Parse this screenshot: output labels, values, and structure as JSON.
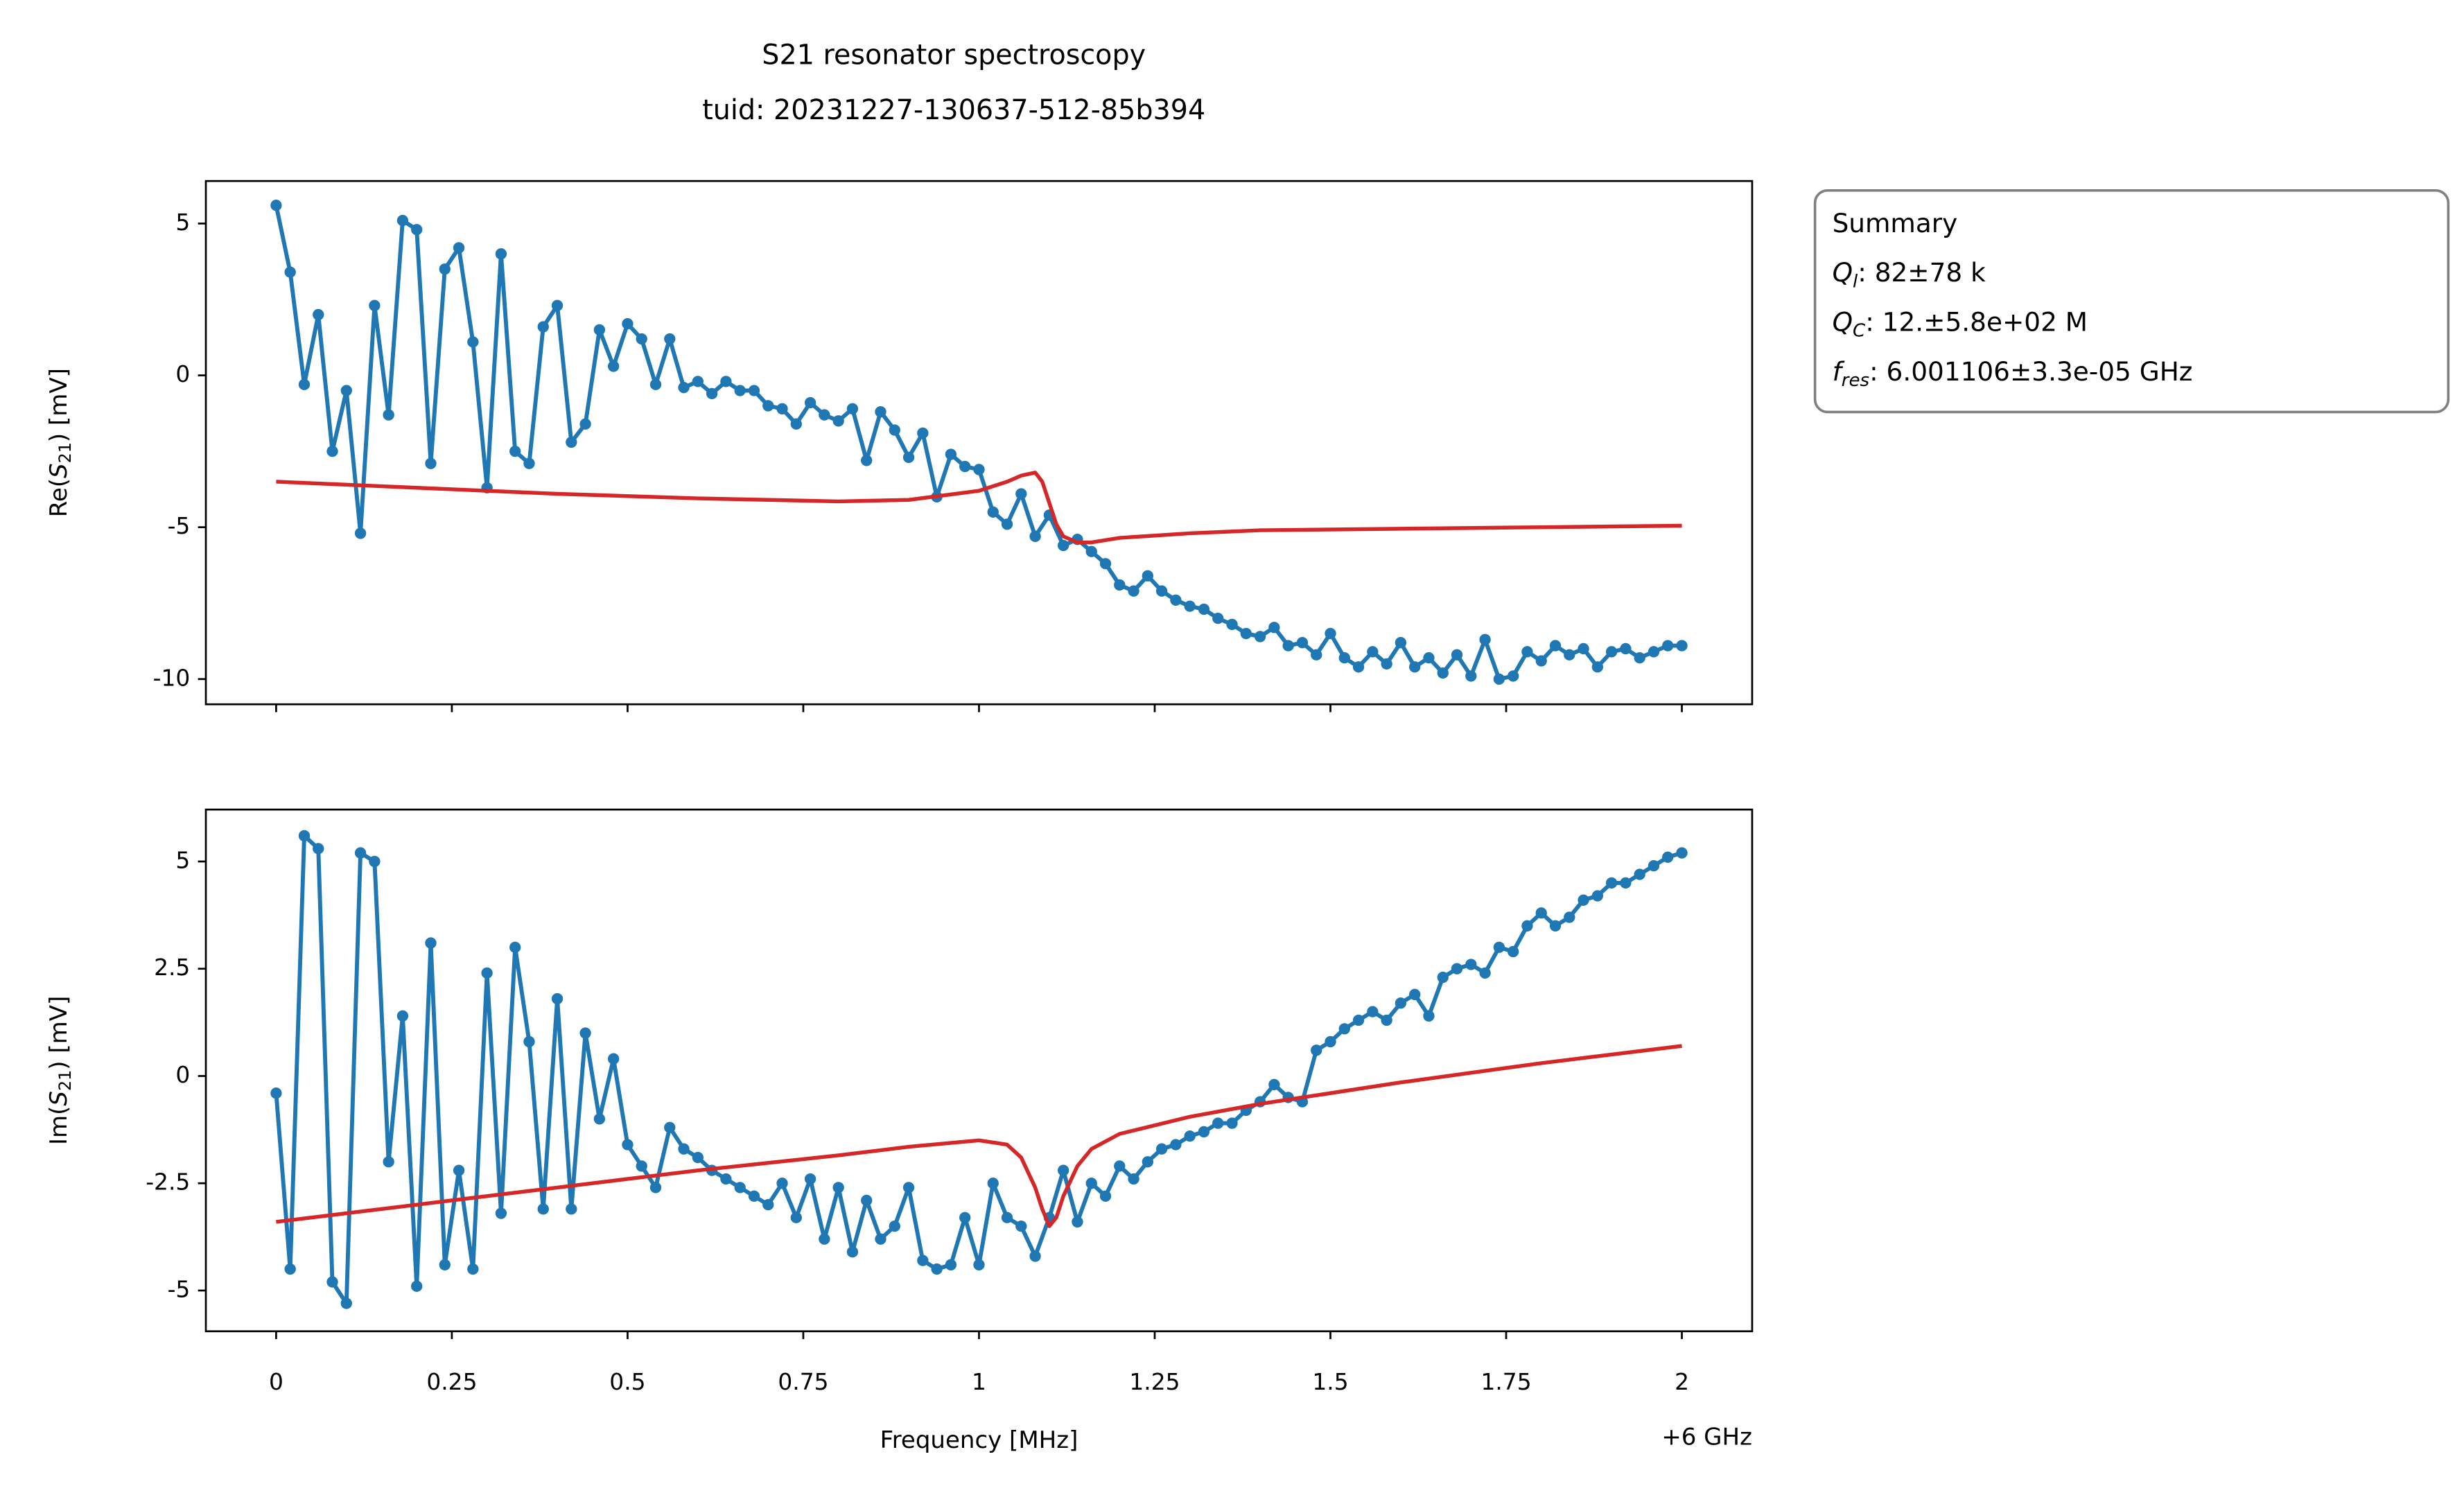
{
  "chart_data": [
    {
      "type": "line",
      "title": "S21 resonator spectroscopy",
      "subtitle": "tuid: 20231227-130637-512-85b394",
      "ylabel": {
        "prefix": "Re(",
        "symbol": "S",
        "subscript": "21",
        "suffix": ") [mV]"
      },
      "xlim": [
        -0.1,
        2.1
      ],
      "ylim": [
        -10.83,
        6.4
      ],
      "xticks": [
        0,
        0.25,
        0.5,
        0.75,
        1,
        1.25,
        1.5,
        1.75,
        2
      ],
      "show_xtick_labels": false,
      "yticks": [
        -10,
        -5,
        0,
        5
      ],
      "series": [
        {
          "color": "#1f77b4",
          "markers": true,
          "x": [
            0,
            0.02,
            0.04,
            0.06,
            0.08,
            0.1,
            0.12,
            0.14,
            0.16,
            0.18,
            0.2,
            0.22,
            0.24,
            0.26,
            0.28,
            0.3,
            0.32,
            0.34,
            0.36,
            0.38,
            0.4,
            0.42,
            0.44,
            0.46,
            0.48,
            0.5,
            0.52,
            0.54,
            0.56,
            0.58,
            0.6,
            0.62,
            0.64,
            0.66,
            0.68,
            0.7,
            0.72,
            0.74,
            0.76,
            0.78,
            0.8,
            0.82,
            0.84,
            0.86,
            0.88,
            0.9,
            0.92,
            0.94,
            0.96,
            0.98,
            1,
            1.02,
            1.04,
            1.06,
            1.08,
            1.1,
            1.12,
            1.14,
            1.16,
            1.18,
            1.2,
            1.22,
            1.24,
            1.26,
            1.28,
            1.3,
            1.32,
            1.34,
            1.36,
            1.38,
            1.4,
            1.42,
            1.44,
            1.46,
            1.48,
            1.5,
            1.52,
            1.54,
            1.56,
            1.58,
            1.6,
            1.62,
            1.64,
            1.66,
            1.68,
            1.7,
            1.72,
            1.74,
            1.76,
            1.78,
            1.8,
            1.82,
            1.84,
            1.86,
            1.88,
            1.9,
            1.92,
            1.94,
            1.96,
            1.98,
            2
          ],
          "values": [
            5.6,
            3.4,
            -0.3,
            2.0,
            -2.5,
            -0.5,
            -5.2,
            2.3,
            -1.3,
            5.1,
            4.8,
            -2.9,
            3.5,
            4.2,
            1.1,
            -3.7,
            4.0,
            -2.5,
            -2.9,
            1.6,
            2.3,
            -2.2,
            -1.6,
            1.5,
            0.3,
            1.7,
            1.2,
            -0.3,
            1.2,
            -0.4,
            -0.2,
            -0.6,
            -0.2,
            -0.5,
            -0.5,
            -1.0,
            -1.1,
            -1.6,
            -0.9,
            -1.3,
            -1.5,
            -1.1,
            -2.8,
            -1.2,
            -1.8,
            -2.7,
            -1.9,
            -4.0,
            -2.6,
            -3.0,
            -3.1,
            -4.5,
            -4.9,
            -3.9,
            -5.3,
            -4.6,
            -5.6,
            -5.4,
            -5.8,
            -6.2,
            -6.9,
            -7.1,
            -6.6,
            -7.1,
            -7.4,
            -7.6,
            -7.7,
            -8.0,
            -8.2,
            -8.5,
            -8.6,
            -8.3,
            -8.9,
            -8.8,
            -9.2,
            -8.5,
            -9.3,
            -9.6,
            -9.1,
            -9.5,
            -8.8,
            -9.6,
            -9.3,
            -9.8,
            -9.2,
            -9.9,
            -8.7,
            -10.0,
            -9.9,
            -9.1,
            -9.4,
            -8.9,
            -9.2,
            -9.0,
            -9.6,
            -9.1,
            -9.0,
            -9.3,
            -9.1,
            -8.9,
            -8.9
          ]
        },
        {
          "color": "#d62728",
          "markers": false,
          "x": [
            0,
            0.2,
            0.4,
            0.6,
            0.8,
            0.9,
            1.0,
            1.04,
            1.06,
            1.08,
            1.09,
            1.1,
            1.11,
            1.12,
            1.14,
            1.16,
            1.2,
            1.3,
            1.4,
            1.6,
            1.8,
            2.0
          ],
          "values": [
            -3.5,
            -3.7,
            -3.9,
            -4.05,
            -4.15,
            -4.1,
            -3.8,
            -3.5,
            -3.3,
            -3.2,
            -3.5,
            -4.2,
            -4.9,
            -5.3,
            -5.5,
            -5.5,
            -5.35,
            -5.2,
            -5.1,
            -5.05,
            -5.0,
            -4.95
          ]
        }
      ],
      "annotation": {
        "title": "Summary",
        "lines": [
          {
            "symbol": "Q",
            "subscript": "l",
            "text": ": 82±78 k"
          },
          {
            "symbol": "Q",
            "subscript": "C",
            "text": ": 12.±5.8e+02 M"
          },
          {
            "symbol": "f",
            "subscript": "res",
            "text": ": 6.001106±3.3e-05 GHz"
          }
        ]
      }
    },
    {
      "type": "line",
      "ylabel": {
        "prefix": "Im(",
        "symbol": "S",
        "subscript": "21",
        "suffix": ") [mV]"
      },
      "xlabel": "Frequency [MHz]",
      "x_offset_label": "+6 GHz",
      "xlim": [
        -0.1,
        2.1
      ],
      "ylim": [
        -5.95,
        6.21
      ],
      "xticks": [
        0,
        0.25,
        0.5,
        0.75,
        1,
        1.25,
        1.5,
        1.75,
        2
      ],
      "show_xtick_labels": true,
      "yticks": [
        -5,
        -2.5,
        0,
        2.5,
        5
      ],
      "series": [
        {
          "color": "#1f77b4",
          "markers": true,
          "x": [
            0,
            0.02,
            0.04,
            0.06,
            0.08,
            0.1,
            0.12,
            0.14,
            0.16,
            0.18,
            0.2,
            0.22,
            0.24,
            0.26,
            0.28,
            0.3,
            0.32,
            0.34,
            0.36,
            0.38,
            0.4,
            0.42,
            0.44,
            0.46,
            0.48,
            0.5,
            0.52,
            0.54,
            0.56,
            0.58,
            0.6,
            0.62,
            0.64,
            0.66,
            0.68,
            0.7,
            0.72,
            0.74,
            0.76,
            0.78,
            0.8,
            0.82,
            0.84,
            0.86,
            0.88,
            0.9,
            0.92,
            0.94,
            0.96,
            0.98,
            1,
            1.02,
            1.04,
            1.06,
            1.08,
            1.1,
            1.12,
            1.14,
            1.16,
            1.18,
            1.2,
            1.22,
            1.24,
            1.26,
            1.28,
            1.3,
            1.32,
            1.34,
            1.36,
            1.38,
            1.4,
            1.42,
            1.44,
            1.46,
            1.48,
            1.5,
            1.52,
            1.54,
            1.56,
            1.58,
            1.6,
            1.62,
            1.64,
            1.66,
            1.68,
            1.7,
            1.72,
            1.74,
            1.76,
            1.78,
            1.8,
            1.82,
            1.84,
            1.86,
            1.88,
            1.9,
            1.92,
            1.94,
            1.96,
            1.98,
            2
          ],
          "values": [
            -0.4,
            -4.5,
            5.6,
            5.3,
            -4.8,
            -5.3,
            5.2,
            5.0,
            -2.0,
            1.4,
            -4.9,
            3.1,
            -4.4,
            -2.2,
            -4.5,
            2.4,
            -3.2,
            3.0,
            0.8,
            -3.1,
            1.8,
            -3.1,
            1.0,
            -1.0,
            0.4,
            -1.6,
            -2.1,
            -2.6,
            -1.2,
            -1.7,
            -1.9,
            -2.2,
            -2.4,
            -2.6,
            -2.8,
            -3.0,
            -2.5,
            -3.3,
            -2.4,
            -3.8,
            -2.6,
            -4.1,
            -2.9,
            -3.8,
            -3.5,
            -2.6,
            -4.3,
            -4.5,
            -4.4,
            -3.3,
            -4.4,
            -2.5,
            -3.3,
            -3.5,
            -4.2,
            -3.3,
            -2.2,
            -3.4,
            -2.5,
            -2.8,
            -2.1,
            -2.4,
            -2.0,
            -1.7,
            -1.6,
            -1.4,
            -1.3,
            -1.1,
            -1.1,
            -0.8,
            -0.6,
            -0.2,
            -0.5,
            -0.6,
            0.6,
            0.8,
            1.1,
            1.3,
            1.5,
            1.3,
            1.7,
            1.9,
            1.4,
            2.3,
            2.5,
            2.6,
            2.4,
            3.0,
            2.9,
            3.5,
            3.8,
            3.5,
            3.7,
            4.1,
            4.2,
            4.5,
            4.5,
            4.7,
            4.9,
            5.1,
            5.2
          ]
        },
        {
          "color": "#d62728",
          "markers": false,
          "x": [
            0,
            0.2,
            0.4,
            0.6,
            0.8,
            0.9,
            1.0,
            1.04,
            1.06,
            1.08,
            1.09,
            1.1,
            1.11,
            1.12,
            1.14,
            1.16,
            1.2,
            1.3,
            1.4,
            1.6,
            1.8,
            2.0
          ],
          "values": [
            -3.4,
            -3.0,
            -2.6,
            -2.2,
            -1.85,
            -1.65,
            -1.5,
            -1.6,
            -1.9,
            -2.6,
            -3.1,
            -3.5,
            -3.3,
            -2.8,
            -2.1,
            -1.7,
            -1.35,
            -0.95,
            -0.65,
            -0.15,
            0.3,
            0.7
          ]
        }
      ]
    }
  ]
}
